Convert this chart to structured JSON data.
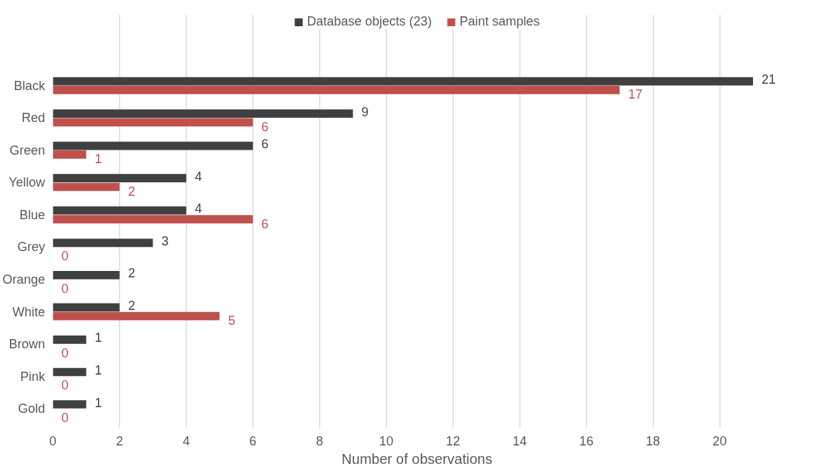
{
  "chart_data": {
    "type": "bar",
    "orientation": "horizontal",
    "xlabel": "Number of observations",
    "categories": [
      "Black",
      "Red",
      "Green",
      "Yellow",
      "Blue",
      "Grey",
      "Orange",
      "White",
      "Brown",
      "Pink",
      "Gold"
    ],
    "series": [
      {
        "name": "Database objects (23)",
        "color": "#404040",
        "values": [
          21,
          9,
          6,
          4,
          4,
          3,
          2,
          2,
          1,
          1,
          1
        ]
      },
      {
        "name": "Paint samples",
        "color": "#c0504d",
        "values": [
          17,
          6,
          1,
          2,
          6,
          0,
          0,
          5,
          0,
          0,
          0
        ]
      }
    ],
    "xlim": [
      0,
      21
    ],
    "xticks": [
      0,
      2,
      4,
      6,
      8,
      10,
      12,
      14,
      16,
      18,
      20
    ],
    "grid": "x",
    "legend": "top",
    "data_labels": true
  }
}
